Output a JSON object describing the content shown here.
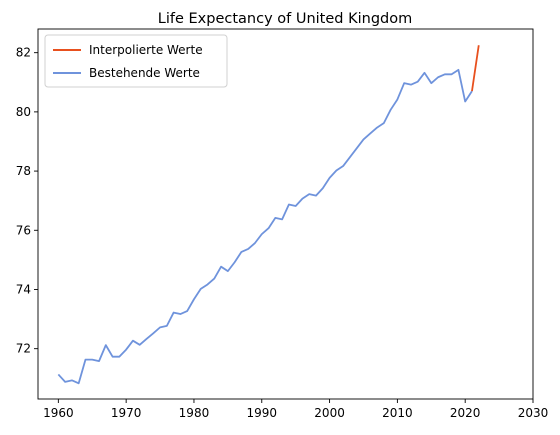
{
  "chart_data": {
    "type": "line",
    "title": "Life Expectancy of United Kingdom",
    "xlabel": "",
    "ylabel": "",
    "xlim": [
      1957,
      2030
    ],
    "ylim": [
      70.3,
      82.8
    ],
    "xticks": [
      1960,
      1970,
      1980,
      1990,
      2000,
      2010,
      2020,
      2030
    ],
    "yticks": [
      72,
      74,
      76,
      78,
      80,
      82
    ],
    "grid": false,
    "legend_position": "upper-left",
    "series": [
      {
        "name": "Interpolierte Werte",
        "color": "#e8501e",
        "x": [
          2021,
          2022
        ],
        "y": [
          80.7,
          82.25
        ]
      },
      {
        "name": "Bestehende Werte",
        "color": "#6f93dc",
        "x": [
          1960,
          1961,
          1962,
          1963,
          1964,
          1965,
          1966,
          1967,
          1968,
          1969,
          1970,
          1971,
          1972,
          1973,
          1974,
          1975,
          1976,
          1977,
          1978,
          1979,
          1980,
          1981,
          1982,
          1983,
          1984,
          1985,
          1986,
          1987,
          1988,
          1989,
          1990,
          1991,
          1992,
          1993,
          1994,
          1995,
          1996,
          1997,
          1998,
          1999,
          2000,
          2001,
          2002,
          2003,
          2004,
          2005,
          2006,
          2007,
          2008,
          2009,
          2010,
          2011,
          2012,
          2013,
          2014,
          2015,
          2016,
          2017,
          2018,
          2019,
          2020,
          2021
        ],
        "y": [
          71.13,
          70.88,
          70.93,
          70.83,
          71.63,
          71.63,
          71.58,
          72.12,
          71.73,
          71.73,
          71.97,
          72.27,
          72.13,
          72.33,
          72.52,
          72.72,
          72.77,
          73.22,
          73.17,
          73.27,
          73.67,
          74.02,
          74.17,
          74.37,
          74.77,
          74.62,
          74.92,
          75.27,
          75.37,
          75.57,
          75.87,
          76.07,
          76.42,
          76.37,
          76.87,
          76.82,
          77.07,
          77.22,
          77.17,
          77.42,
          77.77,
          78.02,
          78.17,
          78.47,
          78.77,
          79.07,
          79.27,
          79.47,
          79.62,
          80.07,
          80.42,
          80.97,
          80.92,
          81.02,
          81.32,
          80.97,
          81.17,
          81.27,
          81.27,
          81.42,
          80.35,
          80.7
        ]
      }
    ]
  }
}
